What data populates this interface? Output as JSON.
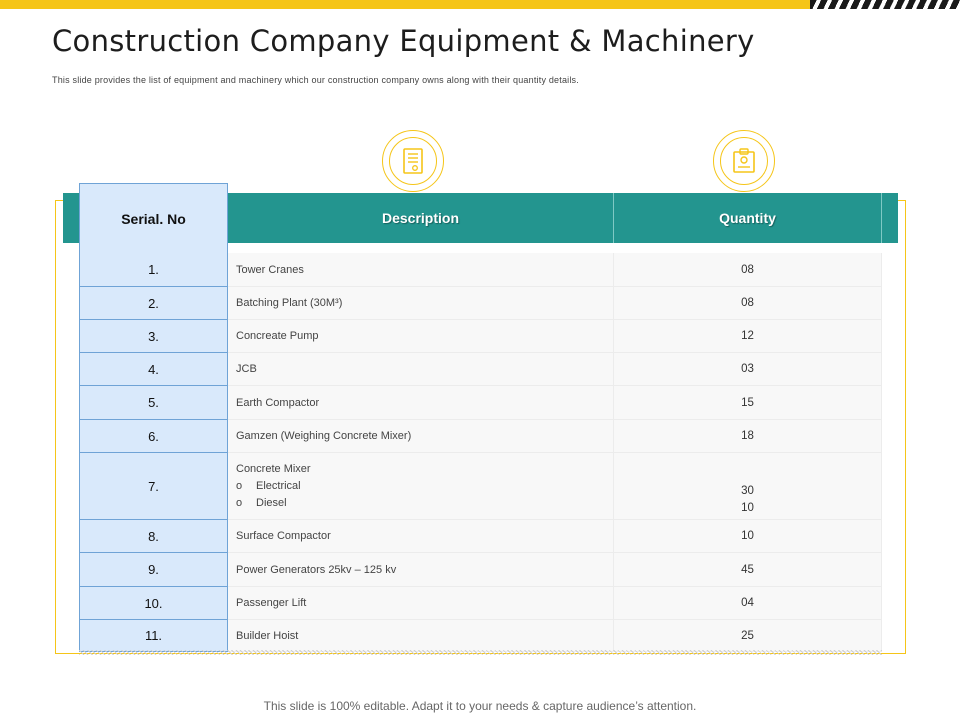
{
  "slide": {
    "title": "Construction Company Equipment & Machinery",
    "subtitle": "This slide provides the list of equipment and machinery which our construction  company owns along with their quantity  details.",
    "footer": "This slide is 100% editable. Adapt it to your needs & capture audience’s attention."
  },
  "colors": {
    "accent_yellow": "#f5c518",
    "header_teal": "#23958f",
    "serial_blue": "#d9e9fb"
  },
  "icons": {
    "left": "document-icon",
    "right": "clipboard-icon"
  },
  "table": {
    "headers": {
      "serial": "Serial. No",
      "description": "Description",
      "quantity": "Quantity"
    },
    "rows": [
      {
        "serial": "1.",
        "description": "Tower Cranes",
        "quantity": "08"
      },
      {
        "serial": "2.",
        "description": "Batching Plant (30M³)",
        "quantity": "08"
      },
      {
        "serial": "3.",
        "description": "Concreate Pump",
        "quantity": "12"
      },
      {
        "serial": "4.",
        "description": "JCB",
        "quantity": "03"
      },
      {
        "serial": "5.",
        "description": "Earth Compactor",
        "quantity": "15"
      },
      {
        "serial": "6.",
        "description": "Gamzen (Weighing Concrete Mixer)",
        "quantity": "18"
      },
      {
        "serial": "7.",
        "description": "Concrete Mixer",
        "sub_items": [
          {
            "bullet": "o",
            "label": "Electrical",
            "quantity": "30"
          },
          {
            "bullet": "o",
            "label": "Diesel",
            "quantity": "10"
          }
        ]
      },
      {
        "serial": "8.",
        "description": "Surface Compactor",
        "quantity": "10"
      },
      {
        "serial": "9.",
        "description": "Power Generators 25kv – 125 kv",
        "quantity": "45"
      },
      {
        "serial": "10.",
        "description": "Passenger Lift",
        "quantity": "04"
      },
      {
        "serial": "11.",
        "description": "Builder Hoist",
        "quantity": "25"
      }
    ]
  }
}
